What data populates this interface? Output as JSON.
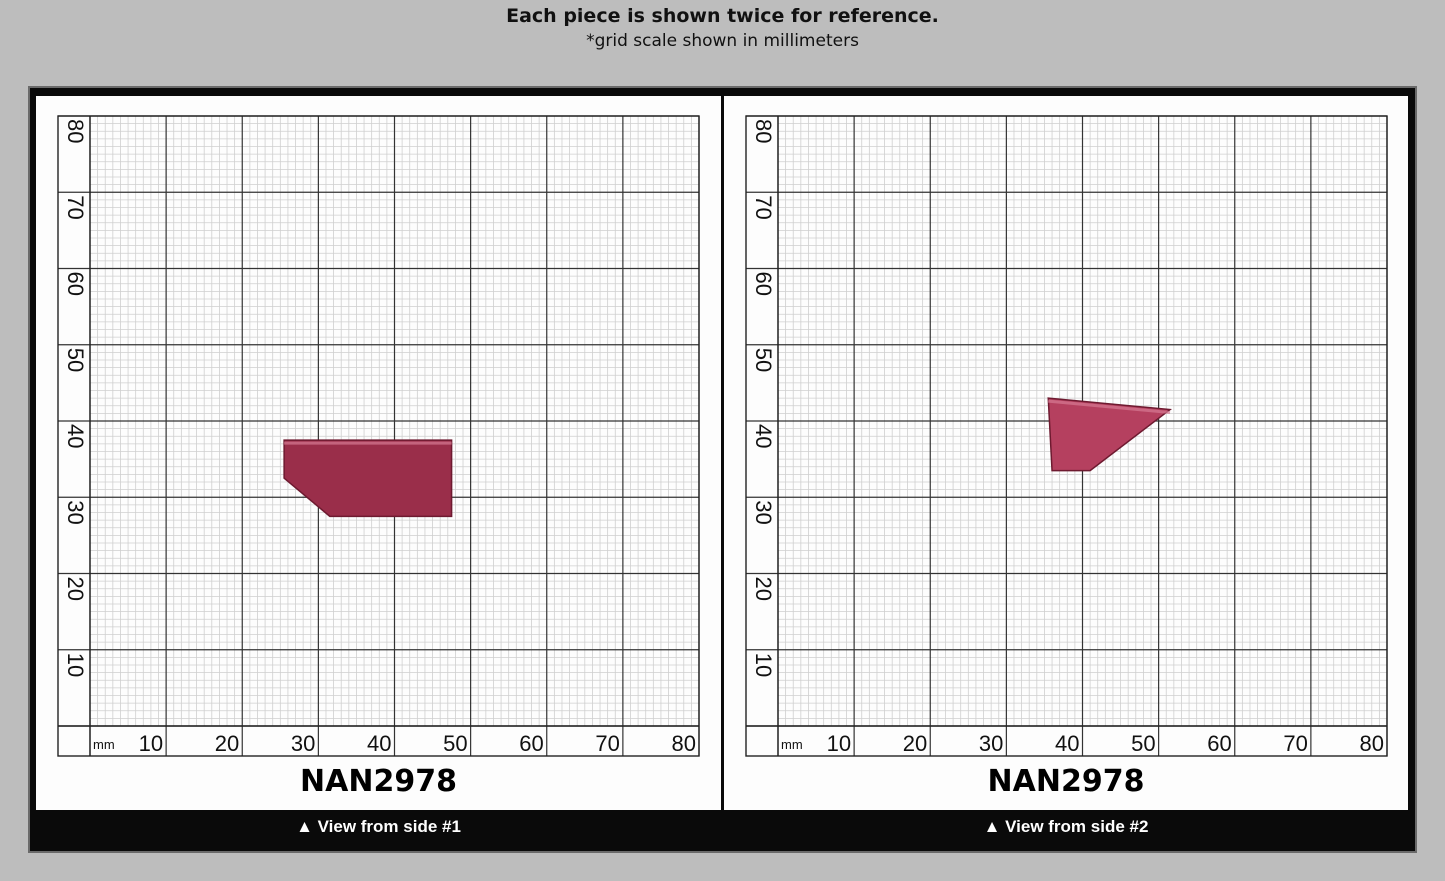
{
  "header": {
    "title": "Each piece is shown twice for reference.",
    "subtitle": "*grid scale shown in millimeters"
  },
  "panels": [
    {
      "label": "NAN2978",
      "caption": "▲ View from side #1",
      "unit": "mm",
      "x_ticks": [
        "10",
        "20",
        "30",
        "40",
        "50",
        "60",
        "70",
        "80"
      ],
      "y_ticks": [
        "10",
        "20",
        "30",
        "40",
        "50",
        "60",
        "70",
        "80"
      ]
    },
    {
      "label": "NAN2978",
      "caption": "▲ View from side #2",
      "unit": "mm",
      "x_ticks": [
        "10",
        "20",
        "30",
        "40",
        "50",
        "60",
        "70",
        "80"
      ],
      "y_ticks": [
        "10",
        "20",
        "30",
        "40",
        "50",
        "60",
        "70",
        "80"
      ]
    }
  ],
  "colors": {
    "background": "#bdbdbd",
    "frame": "#0a0a0a",
    "gem_side1": "#9a2e4a",
    "gem_side2": "#b5405f"
  }
}
